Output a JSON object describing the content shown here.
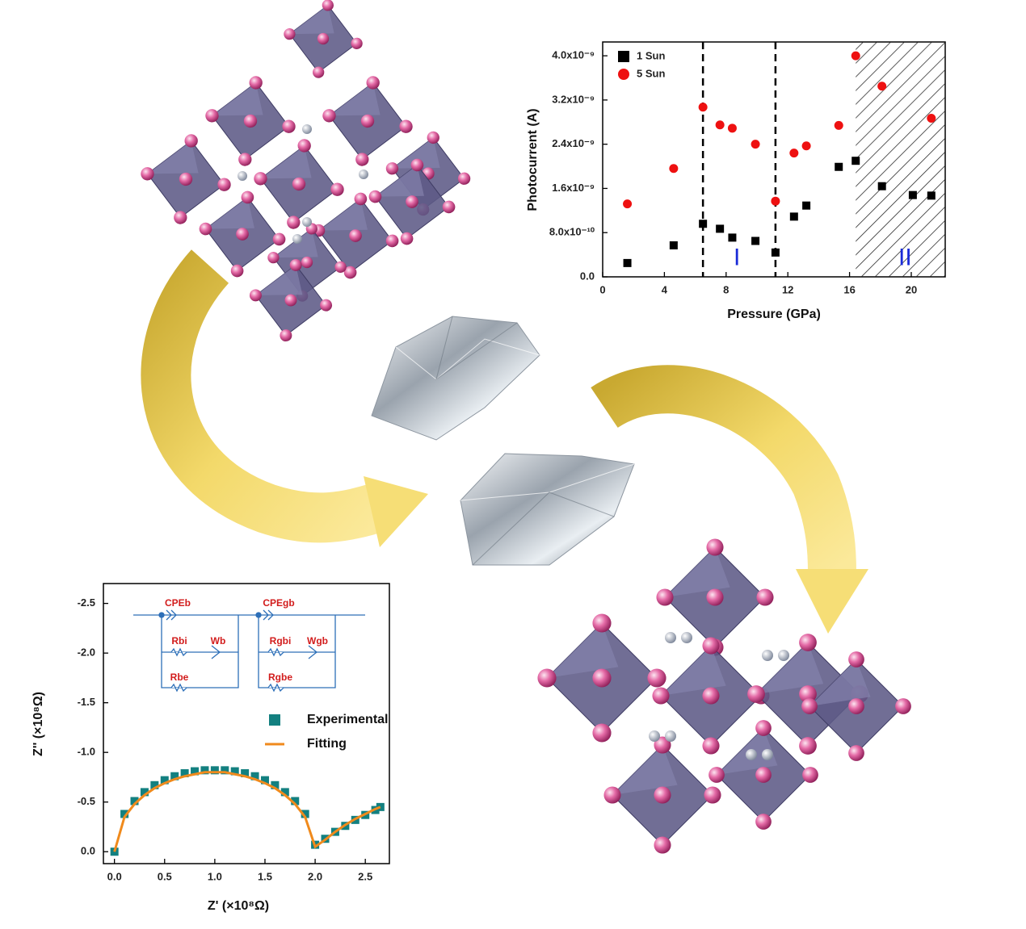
{
  "chart_data": [
    {
      "type": "scatter",
      "xlabel": "Pressure (GPa)",
      "ylabel": "Photocurrent (A)",
      "xlim": [
        0,
        22.2
      ],
      "xticks": [
        0,
        4,
        8,
        12,
        16,
        20
      ],
      "ylim": [
        0,
        4.25e-09
      ],
      "yticks": [
        {
          "value": 0,
          "label": "0.0"
        },
        {
          "value": 8e-10,
          "label": "8.0x10⁻¹⁰"
        },
        {
          "value": 1.6e-09,
          "label": "1.6x10⁻⁹"
        },
        {
          "value": 2.4e-09,
          "label": "2.4x10⁻⁹"
        },
        {
          "value": 3.2e-09,
          "label": "3.2x10⁻⁹"
        },
        {
          "value": 4e-09,
          "label": "4.0x10⁻⁹"
        }
      ],
      "legend": "top-left",
      "vlines": [
        6.5,
        11.2
      ],
      "hatched_region": [
        16.4,
        22.2
      ],
      "annotations": [
        {
          "text": "I",
          "x": 8.7,
          "y": 1.5e-10
        },
        {
          "text": "II",
          "x": 19.6,
          "y": 1.5e-10
        }
      ],
      "series": [
        {
          "name": "1 Sun",
          "color": "#000000",
          "marker": "square",
          "x": [
            1.6,
            4.6,
            6.5,
            7.6,
            8.4,
            9.9,
            11.2,
            12.4,
            13.2,
            15.3,
            16.4,
            18.1,
            20.1,
            21.3
          ],
          "values": [
            2.5e-10,
            5.7e-10,
            9.6e-10,
            8.7e-10,
            7.1e-10,
            6.5e-10,
            4.4e-10,
            1.09e-09,
            1.29e-09,
            1.99e-09,
            2.1e-09,
            1.64e-09,
            1.48e-09,
            1.47e-09
          ]
        },
        {
          "name": "5 Sun",
          "color": "#ee1111",
          "marker": "circle",
          "x": [
            1.6,
            4.6,
            6.5,
            7.6,
            8.4,
            9.9,
            11.2,
            12.4,
            13.2,
            15.3,
            16.4,
            18.1,
            21.3
          ],
          "values": [
            1.32e-09,
            1.96e-09,
            3.07e-09,
            2.75e-09,
            2.69e-09,
            2.4e-09,
            1.37e-09,
            2.24e-09,
            2.37e-09,
            2.74e-09,
            4e-09,
            3.45e-09,
            2.87e-09
          ]
        }
      ]
    },
    {
      "type": "line",
      "xlabel": "Z' (×10⁸Ω)",
      "ylabel": "Z'' (×10⁸Ω)",
      "xlim": [
        -0.11,
        2.74
      ],
      "xticks": [
        {
          "value": 0,
          "label": "0.0"
        },
        {
          "value": 0.5,
          "label": "0.5"
        },
        {
          "value": 1,
          "label": "1.0"
        },
        {
          "value": 1.5,
          "label": "1.5"
        },
        {
          "value": 2,
          "label": "2.0"
        },
        {
          "value": 2.5,
          "label": "2.5"
        }
      ],
      "ylim": [
        0.12,
        -2.7
      ],
      "yticks": [
        {
          "value": 0,
          "label": "0.0"
        },
        {
          "value": -0.5,
          "label": "-0.5"
        },
        {
          "value": -1,
          "label": "-1.0"
        },
        {
          "value": -1.5,
          "label": "-1.5"
        },
        {
          "value": -2,
          "label": "-2.0"
        },
        {
          "value": -2.5,
          "label": "-2.5"
        }
      ],
      "legend": "center-right",
      "circuit_labels": [
        "CPEb",
        "CPEgb",
        "Rbi",
        "Wb",
        "Rgbi",
        "Wgb",
        "Rbe",
        "Rgbe"
      ],
      "x": [
        0,
        0.1,
        0.2,
        0.3,
        0.4,
        0.5,
        0.6,
        0.7,
        0.8,
        0.9,
        1.0,
        1.1,
        1.2,
        1.3,
        1.4,
        1.5,
        1.6,
        1.7,
        1.8,
        1.9,
        2.0,
        2.1,
        2.2,
        2.3,
        2.4,
        2.5,
        2.6,
        2.65
      ],
      "series": [
        {
          "name": "Experimental",
          "color": "#138080",
          "marker": "square",
          "values": [
            0,
            -0.38,
            -0.51,
            -0.6,
            -0.67,
            -0.72,
            -0.76,
            -0.79,
            -0.81,
            -0.82,
            -0.82,
            -0.82,
            -0.81,
            -0.79,
            -0.76,
            -0.72,
            -0.67,
            -0.6,
            -0.51,
            -0.38,
            -0.07,
            -0.13,
            -0.2,
            -0.26,
            -0.32,
            -0.37,
            -0.42,
            -0.45
          ]
        },
        {
          "name": "Fitting",
          "color": "#f08a1c",
          "marker": "line",
          "values": [
            0,
            -0.35,
            -0.48,
            -0.57,
            -0.64,
            -0.69,
            -0.73,
            -0.76,
            -0.78,
            -0.8,
            -0.8,
            -0.8,
            -0.78,
            -0.76,
            -0.73,
            -0.69,
            -0.64,
            -0.57,
            -0.48,
            -0.35,
            -0.05,
            -0.12,
            -0.2,
            -0.27,
            -0.33,
            -0.38,
            -0.43,
            -0.45
          ]
        }
      ]
    }
  ]
}
